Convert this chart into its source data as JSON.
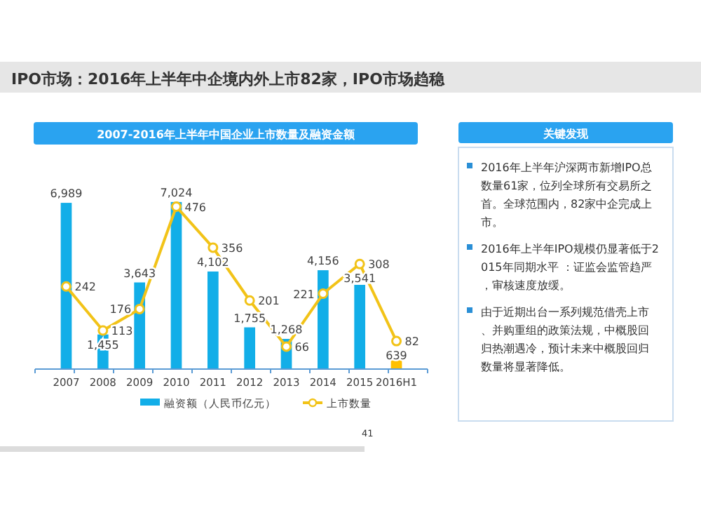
{
  "chart_data": [
    {
      "type": "bar",
      "title": "IPO市场：2016年上半年中企境内外上市82家，IPO市场趋稳",
      "subtitle": "2007-2016年上半年中国企业上市数量及融资金额",
      "categories": [
        "2007",
        "2008",
        "2009",
        "2010",
        "2011",
        "2012",
        "2013",
        "2014",
        "2015",
        "2016H1"
      ],
      "series": [
        {
          "name": "融资额（人民币亿元）",
          "type": "bar",
          "color": "#12aee8",
          "colors": [
            "#12aee8",
            "#12aee8",
            "#12aee8",
            "#12aee8",
            "#12aee8",
            "#12aee8",
            "#12aee8",
            "#12aee8",
            "#12aee8",
            "#ffc000"
          ],
          "values": [
            6989,
            1455,
            3643,
            7024,
            4102,
            1755,
            1268,
            4156,
            3541,
            639
          ],
          "value_labels": [
            "6,989",
            "1,455",
            "3,643",
            "7,024",
            "4,102",
            "1,755",
            "1,268",
            "4,156",
            "3,541",
            "639"
          ]
        },
        {
          "name": "上市数量",
          "type": "line",
          "axis": "y2",
          "color": "#f2c318",
          "values": [
            242,
            113,
            176,
            476,
            356,
            201,
            66,
            221,
            308,
            82
          ]
        }
      ],
      "tick_labels": "x",
      "data_labels": true,
      "marker": "circle",
      "legend": "bottom",
      "grid": false,
      "annotations": [
        "41"
      ]
    },
    {
      "type": "other",
      "title": "关键发现",
      "annotations": [
        "2016年上半年沪深两市新增IPO总数量61家，位列全球所有交易所之首。全球范围内，82家中企完成上市。",
        "2016年上半年IPO规模仍显著低于2015年同期水平 ：证监会监管趋严，审核速度放缓。",
        "由于近期出台一系列规范借壳上市、并购重组的政策法规，中概股回归热潮遇冷，预计未来中概股回归数量将显著降低。"
      ]
    }
  ]
}
